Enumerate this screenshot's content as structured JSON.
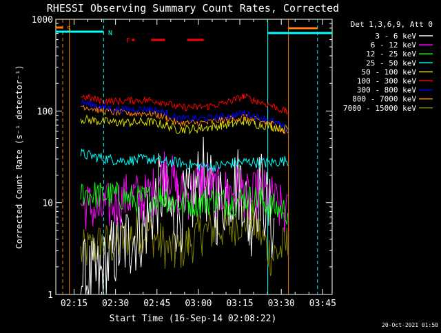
{
  "chart_data": {
    "type": "line",
    "title": "RHESSI Observing Summary Count Rates, Corrected",
    "xlabel": "Start Time (16-Sep-14 02:08:22)",
    "ylabel": "Corrected Count Rate (s⁻¹ detector⁻¹)",
    "y_scale": "log",
    "ylim": [
      1,
      1000
    ],
    "xlim_min": [
      0,
      100
    ],
    "x_ticks": [
      {
        "t": 6.6,
        "label": "02:15"
      },
      {
        "t": 21.6,
        "label": "02:30"
      },
      {
        "t": 36.6,
        "label": "02:45"
      },
      {
        "t": 51.6,
        "label": "03:00"
      },
      {
        "t": 66.6,
        "label": "03:15"
      },
      {
        "t": 81.6,
        "label": "03:30"
      },
      {
        "t": 96.6,
        "label": "03:45"
      }
    ],
    "y_ticks": [
      {
        "v": 1,
        "label": "1"
      },
      {
        "v": 10,
        "label": "10"
      },
      {
        "v": 100,
        "label": "100"
      },
      {
        "v": 1000,
        "label": "1000"
      }
    ],
    "legend_header": "Det 1,3,6,9, Att 0",
    "legend_position": "right",
    "series": [
      {
        "name": "3 - 6 keV",
        "color": "#ffffff",
        "x": [
          0,
          4,
          9,
          16,
          22,
          27,
          32,
          38,
          42,
          48,
          53,
          58,
          63,
          67,
          70,
          74,
          79,
          82,
          86
        ],
        "y": [
          null,
          null,
          1.5,
          1.5,
          3.2,
          4.0,
          5.5,
          14,
          7,
          9,
          20,
          9,
          14,
          17,
          6,
          15,
          5,
          null,
          null
        ]
      },
      {
        "name": "6 - 12 keV",
        "color": "#ff00ff",
        "x": [
          4,
          9,
          16,
          22,
          27,
          32,
          36,
          40,
          44,
          48,
          53,
          58,
          63,
          67,
          70,
          74,
          79,
          84
        ],
        "y": [
          null,
          10,
          8,
          10,
          12,
          11,
          14,
          26,
          13,
          12,
          19,
          13,
          13,
          15,
          10,
          14,
          10,
          7
        ]
      },
      {
        "name": "12 - 25 keV",
        "color": "#00ff00",
        "x": [
          4,
          9,
          16,
          22,
          27,
          32,
          38,
          43,
          48,
          53,
          58,
          63,
          68,
          73,
          78,
          84
        ],
        "y": [
          null,
          13,
          12,
          12,
          11,
          11,
          12,
          10,
          10,
          10,
          11,
          10,
          11,
          11,
          9,
          8
        ]
      },
      {
        "name": "25 - 50 keV",
        "color": "#00ffff",
        "x": [
          4,
          9,
          16,
          22,
          28,
          34,
          40,
          46,
          52,
          58,
          64,
          70,
          76,
          84
        ],
        "y": [
          null,
          34,
          31,
          29,
          29,
          30,
          28,
          27,
          25,
          25,
          27,
          28,
          27,
          29
        ]
      },
      {
        "name": "50 - 100 keV",
        "color": "#dddd00",
        "x": [
          4,
          9,
          16,
          22,
          28,
          34,
          40,
          44,
          50,
          55,
          60,
          64,
          68,
          72,
          78,
          84
        ],
        "y": [
          null,
          82,
          77,
          75,
          75,
          76,
          70,
          63,
          64,
          66,
          70,
          72,
          78,
          73,
          68,
          63
        ]
      },
      {
        "name": "100 - 300 keV",
        "color": "#ff0000",
        "x": [
          4,
          9,
          16,
          22,
          28,
          34,
          40,
          44,
          50,
          55,
          60,
          64,
          68,
          72,
          78,
          84
        ],
        "y": [
          null,
          145,
          130,
          128,
          130,
          132,
          123,
          110,
          110,
          112,
          120,
          130,
          145,
          130,
          115,
          96
        ]
      },
      {
        "name": "300 - 800 keV",
        "color": "#0000ff",
        "x": [
          4,
          9,
          16,
          22,
          28,
          34,
          40,
          44,
          50,
          55,
          60,
          64,
          68,
          72,
          78,
          84
        ],
        "y": [
          null,
          125,
          112,
          104,
          104,
          106,
          95,
          83,
          82,
          83,
          87,
          90,
          95,
          88,
          80,
          62
        ]
      },
      {
        "name": "800 - 7000 keV",
        "color": "#ff8000",
        "x": [
          4,
          9,
          16,
          22,
          28,
          34,
          40,
          44,
          50,
          55,
          60,
          64,
          68,
          72,
          78,
          84
        ],
        "y": [
          null,
          115,
          102,
          96,
          94,
          95,
          85,
          74,
          74,
          75,
          80,
          82,
          86,
          80,
          73,
          58
        ]
      },
      {
        "name": "7000 - 15000 keV",
        "color": "#808000",
        "x": [
          4,
          9,
          16,
          22,
          27,
          33,
          38,
          43,
          48,
          53,
          58,
          63,
          68,
          72,
          78,
          84
        ],
        "y": [
          null,
          2.8,
          3.5,
          3.5,
          4.4,
          5.2,
          3.6,
          2.8,
          3.6,
          4.6,
          5.3,
          5.5,
          6.8,
          6.0,
          2.6,
          3.5
        ]
      }
    ],
    "annotations": [
      {
        "label": "S",
        "color": "#ff8000"
      },
      {
        "label": "N",
        "color": "#00ffff"
      },
      {
        "label": "F",
        "color": "#ff0000"
      }
    ],
    "footer_date": "20-Oct-2021 01:50"
  }
}
